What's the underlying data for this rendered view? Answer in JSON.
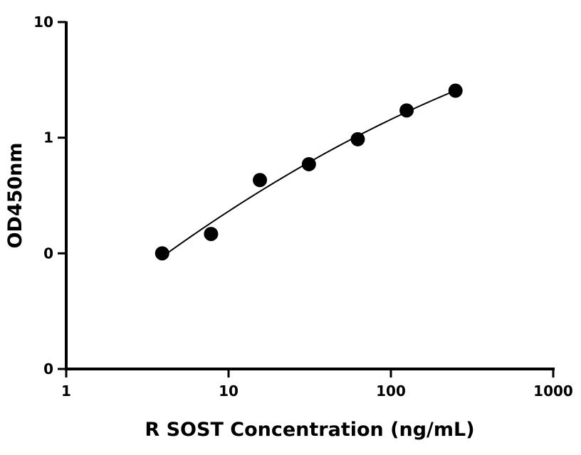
{
  "chart_data": {
    "type": "scatter",
    "title": "",
    "xlabel": "R SOST Concentration (ng/mL)",
    "ylabel": "OD450nm",
    "x_scale": "log",
    "y_scale": "log",
    "xlim": [
      1,
      1000
    ],
    "ylim": [
      0.01,
      10
    ],
    "x_ticks": [
      1,
      10,
      100,
      1000
    ],
    "x_tick_labels": [
      "1",
      "10",
      "100",
      "1000"
    ],
    "y_ticks": [
      0.01,
      0.1,
      1,
      10
    ],
    "y_tick_labels": [
      "0",
      "0",
      "1",
      "10"
    ],
    "grid": false,
    "legend": "none",
    "marker_color": "#000000",
    "series": [
      {
        "x": [
          3.9,
          7.8,
          15.6,
          31.25,
          62.5,
          125,
          250
        ],
        "y": [
          0.1,
          0.147,
          0.43,
          0.59,
          0.97,
          1.72,
          2.55
        ]
      }
    ],
    "fit_line": true
  }
}
